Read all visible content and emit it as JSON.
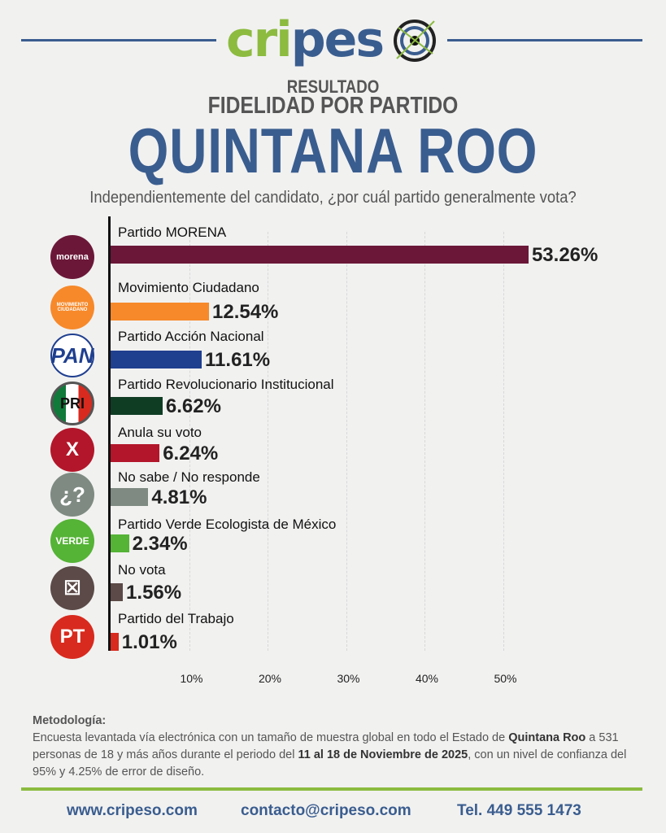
{
  "header": {
    "logo_text": "cripeso",
    "pretitle": "RESULTADO",
    "subtitle": "FIDELIDAD POR PARTIDO",
    "title": "QUINTANA ROO",
    "question": "Independientemente del candidato, ¿por cuál partido generalmente vota?"
  },
  "chart_data": {
    "type": "bar",
    "orientation": "horizontal",
    "categories": [
      "Partido MORENA",
      "Movimiento Ciudadano",
      "Partido Acción Nacional",
      "Partido Revolucionario Institucional",
      "Anula su voto",
      "No sabe / No responde",
      "Partido Verde Ecologista de México",
      "No vota",
      "Partido del Trabajo"
    ],
    "values": [
      53.26,
      12.54,
      11.61,
      6.62,
      6.24,
      4.81,
      2.34,
      1.56,
      1.01
    ],
    "value_labels": [
      "53.26%",
      "12.54%",
      "11.61%",
      "6.62%",
      "6.24%",
      "4.81%",
      "2.34%",
      "1.56%",
      "1.01%"
    ],
    "colors": [
      "#6b1838",
      "#f7892a",
      "#1f3f8f",
      "#0f3d24",
      "#b3162a",
      "#7e8a82",
      "#55b336",
      "#5b4a47",
      "#d82a1e"
    ],
    "icons": [
      {
        "name": "morena-logo",
        "text": "morena",
        "bg": "#6b1838"
      },
      {
        "name": "movimiento-ciudadano-logo",
        "text": "MOVIMIENTO CIUDADANO",
        "bg": "#f7892a"
      },
      {
        "name": "pan-logo",
        "text": "PAN",
        "bg": "#ffffff"
      },
      {
        "name": "pri-logo",
        "text": "PRI",
        "bg": "#ffffff"
      },
      {
        "name": "anula-x-icon",
        "text": "X",
        "bg": "#b3162a"
      },
      {
        "name": "question-icon",
        "text": "¿?",
        "bg": "#7e8a82"
      },
      {
        "name": "verde-logo",
        "text": "VERDE",
        "bg": "#55b336"
      },
      {
        "name": "no-vota-icon",
        "text": "☒",
        "bg": "#5b4a47"
      },
      {
        "name": "pt-logo",
        "text": "PT",
        "bg": "#d82a1e"
      }
    ],
    "xticks": [
      10,
      20,
      30,
      40,
      50
    ],
    "xtick_labels": [
      "10%",
      "20%",
      "30%",
      "40%",
      "50%"
    ],
    "xlim": [
      0,
      55
    ],
    "grid": true
  },
  "methodology": {
    "heading": "Metodología:",
    "text_1": "Encuesta levantada vía electrónica con un tamaño de muestra global en todo el Estado de ",
    "bold_1": "Quintana Roo",
    "text_2": " a 531 personas de 18 y más años durante el periodo del ",
    "bold_2": "11 al 18 de Noviembre de 2025",
    "text_3": ", con un nivel de confianza del 95% y 4.25% de error de diseño."
  },
  "footer": {
    "website": "www.cripeso.com",
    "email": "contacto@cripeso.com",
    "phone": "Tel. 449 555 1473"
  },
  "colors": {
    "brand_blue": "#3a5d8f",
    "brand_green": "#8cbb3f"
  }
}
